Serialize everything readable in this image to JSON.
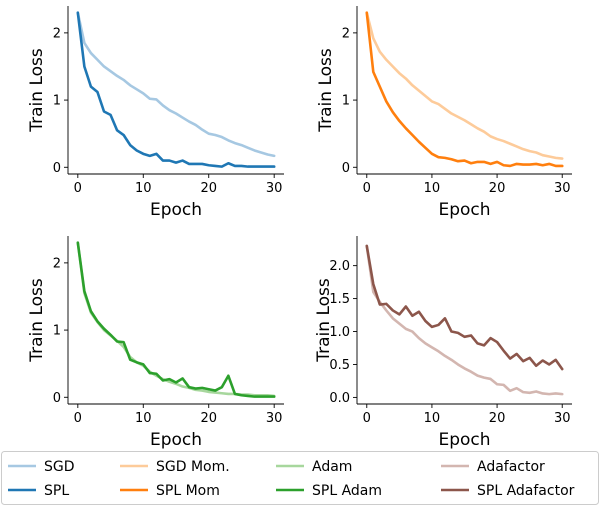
{
  "legend": {
    "placement": "bottom",
    "entries": [
      {
        "name": "SGD",
        "color": "#a6c8e2"
      },
      {
        "name": "SGD Mom.",
        "color": "#fdcb9a"
      },
      {
        "name": "Adam",
        "color": "#a7d79d"
      },
      {
        "name": "Adafactor",
        "color": "#d3b6b0"
      },
      {
        "name": "SPL",
        "color": "#1f77b4"
      },
      {
        "name": "SPL Mom",
        "color": "#ff7f0e"
      },
      {
        "name": "SPL Adam",
        "color": "#2ca02c"
      },
      {
        "name": "SPL Adafactor",
        "color": "#8c564b"
      }
    ]
  },
  "chart_data": [
    {
      "type": "line",
      "title": "",
      "xlabel": "Epoch",
      "ylabel": "Train Loss",
      "xlim": [
        -1.5,
        31.5
      ],
      "ylim": [
        -0.1,
        2.4
      ],
      "xticks": [
        0,
        10,
        20,
        30
      ],
      "yticks": [
        0,
        1,
        2
      ],
      "ytick_labels": [
        "0",
        "1",
        "2"
      ],
      "x": [
        0,
        1,
        2,
        3,
        4,
        5,
        6,
        7,
        8,
        9,
        10,
        11,
        12,
        13,
        14,
        15,
        16,
        17,
        18,
        19,
        20,
        21,
        22,
        23,
        24,
        25,
        26,
        27,
        28,
        29,
        30
      ],
      "series": [
        {
          "name": "SGD",
          "color": "#a6c8e2",
          "values": [
            2.3,
            1.85,
            1.7,
            1.6,
            1.5,
            1.43,
            1.36,
            1.3,
            1.22,
            1.16,
            1.1,
            1.02,
            1.01,
            0.92,
            0.85,
            0.8,
            0.74,
            0.68,
            0.63,
            0.56,
            0.5,
            0.48,
            0.45,
            0.4,
            0.36,
            0.33,
            0.29,
            0.25,
            0.22,
            0.19,
            0.17
          ]
        },
        {
          "name": "SPL",
          "color": "#1f77b4",
          "values": [
            2.3,
            1.5,
            1.2,
            1.12,
            0.83,
            0.78,
            0.55,
            0.48,
            0.33,
            0.25,
            0.2,
            0.17,
            0.2,
            0.1,
            0.1,
            0.07,
            0.1,
            0.05,
            0.05,
            0.05,
            0.03,
            0.02,
            0.01,
            0.06,
            0.02,
            0.02,
            0.01,
            0.01,
            0.01,
            0.01,
            0.01
          ]
        }
      ]
    },
    {
      "type": "line",
      "title": "",
      "xlabel": "Epoch",
      "ylabel": "Train Loss",
      "xlim": [
        -1.5,
        31.5
      ],
      "ylim": [
        -0.1,
        2.4
      ],
      "xticks": [
        0,
        10,
        20,
        30
      ],
      "yticks": [
        0,
        1,
        2
      ],
      "ytick_labels": [
        "0",
        "1",
        "2"
      ],
      "x": [
        0,
        1,
        2,
        3,
        4,
        5,
        6,
        7,
        8,
        9,
        10,
        11,
        12,
        13,
        14,
        15,
        16,
        17,
        18,
        19,
        20,
        21,
        22,
        23,
        24,
        25,
        26,
        27,
        28,
        29,
        30
      ],
      "series": [
        {
          "name": "SGD Mom.",
          "color": "#fdcb9a",
          "values": [
            2.3,
            1.92,
            1.72,
            1.6,
            1.5,
            1.4,
            1.32,
            1.22,
            1.14,
            1.06,
            0.98,
            0.94,
            0.87,
            0.8,
            0.75,
            0.7,
            0.64,
            0.58,
            0.53,
            0.46,
            0.42,
            0.39,
            0.35,
            0.31,
            0.27,
            0.24,
            0.22,
            0.18,
            0.16,
            0.14,
            0.13
          ]
        },
        {
          "name": "SPL Mom",
          "color": "#ff7f0e",
          "values": [
            2.3,
            1.42,
            1.2,
            0.98,
            0.82,
            0.69,
            0.58,
            0.48,
            0.38,
            0.29,
            0.2,
            0.15,
            0.14,
            0.12,
            0.09,
            0.1,
            0.06,
            0.08,
            0.08,
            0.05,
            0.08,
            0.03,
            0.02,
            0.05,
            0.04,
            0.04,
            0.05,
            0.03,
            0.05,
            0.02,
            0.02
          ]
        }
      ]
    },
    {
      "type": "line",
      "title": "",
      "xlabel": "Epoch",
      "ylabel": "Train Loss",
      "xlim": [
        -1.5,
        31.5
      ],
      "ylim": [
        -0.1,
        2.4
      ],
      "xticks": [
        0,
        10,
        20,
        30
      ],
      "yticks": [
        0,
        1,
        2
      ],
      "ytick_labels": [
        "0",
        "1",
        "2"
      ],
      "x": [
        0,
        1,
        2,
        3,
        4,
        5,
        6,
        7,
        8,
        9,
        10,
        11,
        12,
        13,
        14,
        15,
        16,
        17,
        18,
        19,
        20,
        21,
        22,
        23,
        24,
        25,
        26,
        27,
        28,
        29,
        30
      ],
      "series": [
        {
          "name": "Adam",
          "color": "#a7d79d",
          "values": [
            2.3,
            1.55,
            1.26,
            1.12,
            1.0,
            0.92,
            0.84,
            0.75,
            0.6,
            0.52,
            0.47,
            0.38,
            0.32,
            0.27,
            0.23,
            0.2,
            0.16,
            0.14,
            0.11,
            0.1,
            0.08,
            0.07,
            0.06,
            0.05,
            0.05,
            0.04,
            0.04,
            0.03,
            0.03,
            0.03,
            0.02
          ]
        },
        {
          "name": "SPL Adam",
          "color": "#2ca02c",
          "values": [
            2.3,
            1.58,
            1.28,
            1.13,
            1.02,
            0.93,
            0.83,
            0.82,
            0.56,
            0.52,
            0.49,
            0.36,
            0.35,
            0.25,
            0.27,
            0.22,
            0.28,
            0.15,
            0.13,
            0.14,
            0.12,
            0.1,
            0.15,
            0.32,
            0.05,
            0.03,
            0.02,
            0.01,
            0.01,
            0.01,
            0.01
          ]
        }
      ]
    },
    {
      "type": "line",
      "title": "",
      "xlabel": "Epoch",
      "ylabel": "Train Loss",
      "xlim": [
        -1.5,
        31.5
      ],
      "ylim": [
        -0.1,
        2.45
      ],
      "xticks": [
        0,
        10,
        20,
        30
      ],
      "yticks": [
        0.0,
        0.5,
        1.0,
        1.5,
        2.0
      ],
      "ytick_labels": [
        "0.0",
        "0.5",
        "1.0",
        "1.5",
        "2.0"
      ],
      "x": [
        0,
        1,
        2,
        3,
        4,
        5,
        6,
        7,
        8,
        9,
        10,
        11,
        12,
        13,
        14,
        15,
        16,
        17,
        18,
        19,
        20,
        21,
        22,
        23,
        24,
        25,
        26,
        27,
        28,
        29,
        30
      ],
      "series": [
        {
          "name": "Adafactor",
          "color": "#d3b6b0",
          "values": [
            2.3,
            1.6,
            1.45,
            1.32,
            1.2,
            1.12,
            1.04,
            1.0,
            0.9,
            0.82,
            0.76,
            0.7,
            0.63,
            0.57,
            0.5,
            0.44,
            0.39,
            0.33,
            0.3,
            0.28,
            0.2,
            0.19,
            0.1,
            0.14,
            0.08,
            0.07,
            0.09,
            0.06,
            0.05,
            0.06,
            0.05
          ]
        },
        {
          "name": "SPL Adafactor",
          "color": "#8c564b",
          "values": [
            2.3,
            1.72,
            1.41,
            1.42,
            1.32,
            1.26,
            1.38,
            1.24,
            1.3,
            1.16,
            1.07,
            1.1,
            1.2,
            1.0,
            0.98,
            0.92,
            0.94,
            0.82,
            0.79,
            0.9,
            0.84,
            0.71,
            0.59,
            0.66,
            0.55,
            0.6,
            0.48,
            0.56,
            0.5,
            0.57,
            0.43
          ]
        }
      ]
    }
  ]
}
